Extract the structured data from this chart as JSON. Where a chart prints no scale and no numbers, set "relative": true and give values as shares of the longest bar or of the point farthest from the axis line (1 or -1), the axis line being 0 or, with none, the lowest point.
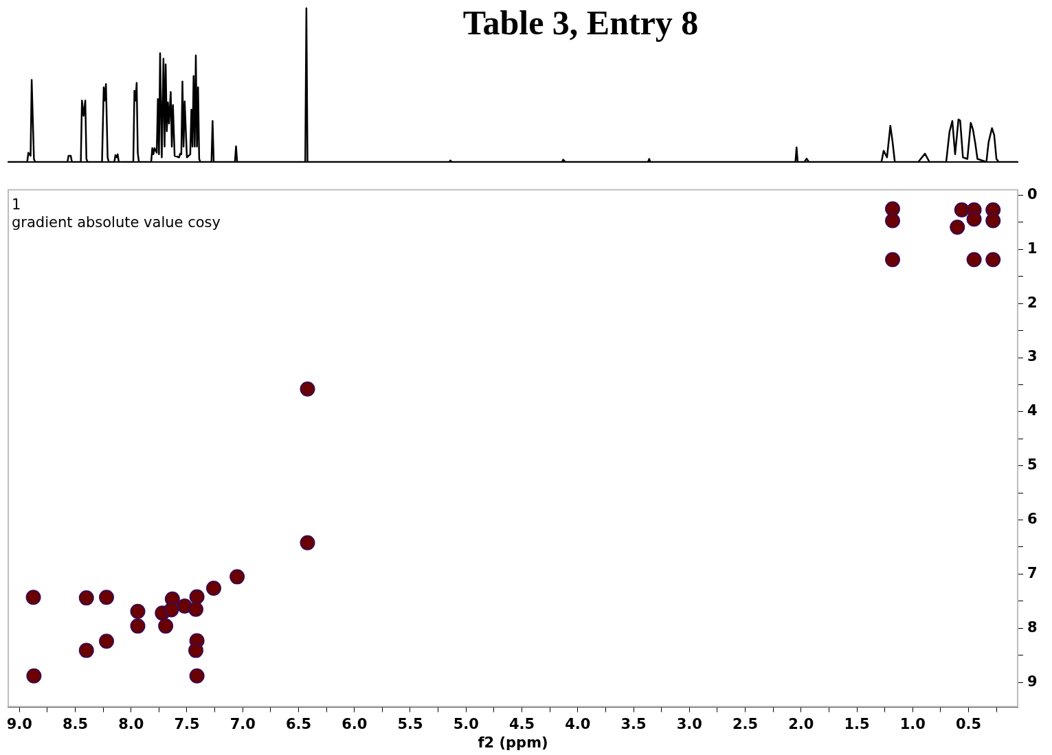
{
  "chart_data": [
    {
      "type": "line",
      "title": "Table 3, Entry 8",
      "relative": true,
      "color": "#000000",
      "marker": "none",
      "tick_labels": false,
      "xlim": [
        9.1,
        0.06
      ],
      "x": [
        9.1,
        8.93,
        8.92,
        8.9,
        8.89,
        8.87,
        8.86,
        8.57,
        8.56,
        8.54,
        8.53,
        8.45,
        8.44,
        8.425,
        8.41,
        8.4,
        8.39,
        8.26,
        8.245,
        8.235,
        8.225,
        8.21,
        8.2,
        8.15,
        8.14,
        8.13,
        8.12,
        8.11,
        7.98,
        7.97,
        7.96,
        7.95,
        7.94,
        7.93,
        7.82,
        7.81,
        7.8,
        7.79,
        7.77,
        7.76,
        7.75,
        7.74,
        7.725,
        7.71,
        7.7,
        7.69,
        7.68,
        7.67,
        7.66,
        7.645,
        7.635,
        7.625,
        7.61,
        7.57,
        7.56,
        7.55,
        7.54,
        7.53,
        7.52,
        7.5,
        7.47,
        7.46,
        7.45,
        7.44,
        7.43,
        7.42,
        7.41,
        7.4,
        7.39,
        7.38,
        7.28,
        7.27,
        7.26,
        7.07,
        7.06,
        7.05,
        6.44,
        6.43,
        6.42,
        5.15,
        5.14,
        5.13,
        4.14,
        4.13,
        4.11,
        3.37,
        3.36,
        3.35,
        2.05,
        2.04,
        2.03,
        1.97,
        1.95,
        1.93,
        1.28,
        1.26,
        1.23,
        1.2,
        1.18,
        1.16,
        0.95,
        0.89,
        0.85,
        0.7,
        0.67,
        0.645,
        0.62,
        0.59,
        0.575,
        0.55,
        0.51,
        0.48,
        0.46,
        0.44,
        0.42,
        0.34,
        0.32,
        0.29,
        0.27,
        0.25,
        0.23,
        0.06
      ],
      "values": [
        0,
        0,
        0.06,
        0.04,
        0.533,
        0.02,
        0,
        0,
        0.04,
        0.04,
        0,
        0,
        0.4,
        0.3,
        0.4,
        0.02,
        0,
        0,
        0.485,
        0.4,
        0.507,
        0.03,
        0,
        0,
        0.045,
        0.03,
        0.05,
        0,
        0,
        0.463,
        0.4,
        0.514,
        0.06,
        0,
        0,
        0.09,
        0.05,
        0.09,
        0.06,
        0.41,
        0.05,
        0.708,
        0.03,
        0.672,
        0.1,
        0.635,
        0.2,
        0.387,
        0.25,
        0.455,
        0.1,
        0.37,
        0.04,
        0.03,
        0.054,
        0.05,
        0.523,
        0.1,
        0.394,
        0.03,
        0.05,
        0.34,
        0.1,
        0.559,
        0.1,
        0.693,
        0.1,
        0.486,
        0.02,
        0,
        0,
        0.267,
        0,
        0,
        0.102,
        0,
        0,
        1,
        0,
        0,
        0.01,
        0,
        0,
        0.015,
        0,
        0,
        0.02,
        0,
        0,
        0.095,
        0,
        0,
        0.022,
        0,
        0,
        0.073,
        0.03,
        0.236,
        0.13,
        0,
        0,
        0.054,
        0,
        0,
        0.197,
        0.267,
        0.05,
        0.277,
        0.27,
        0.03,
        0.02,
        0.255,
        0.21,
        0.124,
        0.02,
        0,
        0.13,
        0.22,
        0.175,
        0.02,
        0,
        0
      ]
    },
    {
      "type": "scatter",
      "xlabel": "f2 (ppm)",
      "color": "#6b0000",
      "marker": "circle",
      "annotations": [
        "1",
        "gradient absolute value cosy"
      ],
      "xlim": [
        9.1,
        0.06
      ],
      "ylim": [
        9.45,
        -0.1
      ],
      "xticks": [
        {
          "value": 9,
          "label": "9.0"
        },
        {
          "value": 8.75,
          "label": null
        },
        {
          "value": 8.5,
          "label": "8.5"
        },
        {
          "value": 8.25,
          "label": null
        },
        {
          "value": 8,
          "label": "8.0"
        },
        {
          "value": 7.75,
          "label": null
        },
        {
          "value": 7.5,
          "label": "7.5"
        },
        {
          "value": 7.25,
          "label": null
        },
        {
          "value": 7,
          "label": "7.0"
        },
        {
          "value": 6.75,
          "label": null
        },
        {
          "value": 6.5,
          "label": "6.5"
        },
        {
          "value": 6.25,
          "label": null
        },
        {
          "value": 6,
          "label": "6.0"
        },
        {
          "value": 5.75,
          "label": null
        },
        {
          "value": 5.5,
          "label": "5.5"
        },
        {
          "value": 5.25,
          "label": null
        },
        {
          "value": 5,
          "label": "5.0"
        },
        {
          "value": 4.75,
          "label": null
        },
        {
          "value": 4.5,
          "label": "4.5"
        },
        {
          "value": 4.25,
          "label": null
        },
        {
          "value": 4,
          "label": "4.0"
        },
        {
          "value": 3.75,
          "label": null
        },
        {
          "value": 3.5,
          "label": "3.5"
        },
        {
          "value": 3.25,
          "label": null
        },
        {
          "value": 3,
          "label": "3.0"
        },
        {
          "value": 2.75,
          "label": null
        },
        {
          "value": 2.5,
          "label": "2.5"
        },
        {
          "value": 2.25,
          "label": null
        },
        {
          "value": 2,
          "label": "2.0"
        },
        {
          "value": 1.75,
          "label": null
        },
        {
          "value": 1.5,
          "label": "1.5"
        },
        {
          "value": 1.25,
          "label": null
        },
        {
          "value": 1,
          "label": "1.0"
        },
        {
          "value": 0.75,
          "label": null
        },
        {
          "value": 0.5,
          "label": "0.5"
        },
        {
          "value": 0.25,
          "label": null
        }
      ],
      "yticks": [
        0,
        {
          "value": 0.5,
          "label": null
        },
        1,
        {
          "value": 1.5,
          "label": null
        },
        2,
        {
          "value": 2.5,
          "label": null
        },
        3,
        {
          "value": 3.5,
          "label": null
        },
        4,
        {
          "value": 4.5,
          "label": null
        },
        5,
        {
          "value": 5.5,
          "label": null
        },
        6,
        {
          "value": 6.5,
          "label": null
        },
        7,
        {
          "value": 7.5,
          "label": null
        },
        8,
        {
          "value": 8.5,
          "label": null
        },
        9
      ],
      "x": [
        8.875,
        8.4,
        8.22,
        7.94,
        7.94,
        7.69,
        7.72,
        7.63,
        7.64,
        7.52,
        7.41,
        7.42,
        7.41,
        7.42,
        7.41,
        8.22,
        8.4,
        8.87,
        7.26,
        7.05,
        6.42,
        6.42,
        1.18,
        1.18,
        1.18,
        0.56,
        0.6,
        0.45,
        0.45,
        0.45,
        0.28,
        0.28,
        0.28
      ],
      "values": [
        7.43,
        7.44,
        7.43,
        7.69,
        7.96,
        7.96,
        7.72,
        7.46,
        7.66,
        7.59,
        7.42,
        7.65,
        8.23,
        8.41,
        8.88,
        8.24,
        8.41,
        8.88,
        7.26,
        7.05,
        6.42,
        3.58,
        0.25,
        0.47,
        1.19,
        0.27,
        0.59,
        0.27,
        0.44,
        1.19,
        0.27,
        0.47,
        1.19
      ]
    }
  ]
}
